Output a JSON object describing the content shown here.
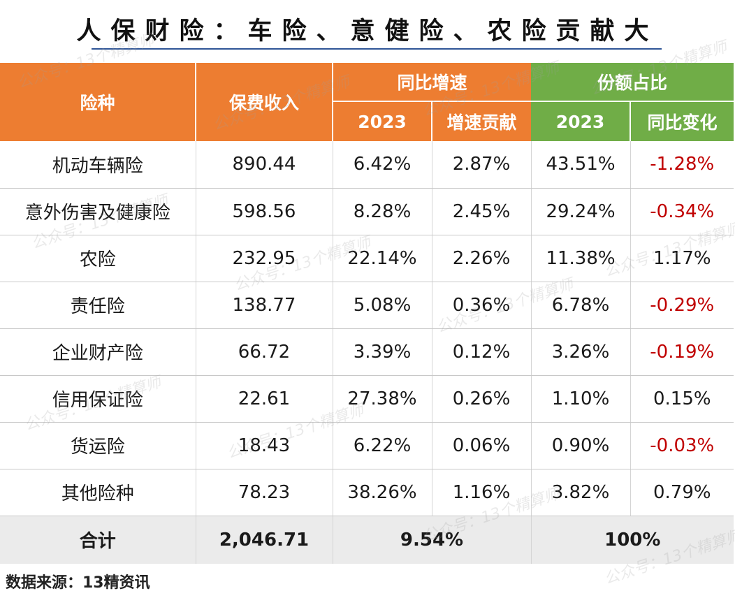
{
  "title": "人保财险：车险、意健险、农险贡献大",
  "header": {
    "col_type": "险种",
    "col_premium": "保费收入",
    "group_growth": "同比增速",
    "group_share": "份额占比",
    "growth_year": "2023",
    "growth_contrib": "增速贡献",
    "share_year": "2023",
    "share_change": "同比变化"
  },
  "rows": [
    {
      "name": "机动车辆险",
      "premium": "890.44",
      "growth": "6.42%",
      "contrib": "2.87%",
      "share": "43.51%",
      "change": "-1.28%"
    },
    {
      "name": "意外伤害及健康险",
      "premium": "598.56",
      "growth": "8.28%",
      "contrib": "2.45%",
      "share": "29.24%",
      "change": "-0.34%"
    },
    {
      "name": "农险",
      "premium": "232.95",
      "growth": "22.14%",
      "contrib": "2.26%",
      "share": "11.38%",
      "change": "1.17%"
    },
    {
      "name": "责任险",
      "premium": "138.77",
      "growth": "5.08%",
      "contrib": "0.36%",
      "share": "6.78%",
      "change": "-0.29%"
    },
    {
      "name": "企业财产险",
      "premium": "66.72",
      "growth": "3.39%",
      "contrib": "0.12%",
      "share": "3.26%",
      "change": "-0.19%"
    },
    {
      "name": "信用保证险",
      "premium": "22.61",
      "growth": "27.38%",
      "contrib": "0.26%",
      "share": "1.10%",
      "change": "0.15%"
    },
    {
      "name": "货运险",
      "premium": "18.43",
      "growth": "6.22%",
      "contrib": "0.06%",
      "share": "0.90%",
      "change": "-0.03%"
    },
    {
      "name": "其他险种",
      "premium": "78.23",
      "growth": "38.26%",
      "contrib": "1.16%",
      "share": "3.82%",
      "change": "0.79%"
    }
  ],
  "total": {
    "name": "合计",
    "premium": "2,046.71",
    "growth": "9.54%",
    "share": "100%"
  },
  "source": "数据来源：13精资讯",
  "watermark": "公众号：13个精算师",
  "colors": {
    "header_orange": "#ed7d31",
    "header_green": "#70ad47",
    "negative": "#c00000",
    "total_bg": "#ebebeb"
  }
}
